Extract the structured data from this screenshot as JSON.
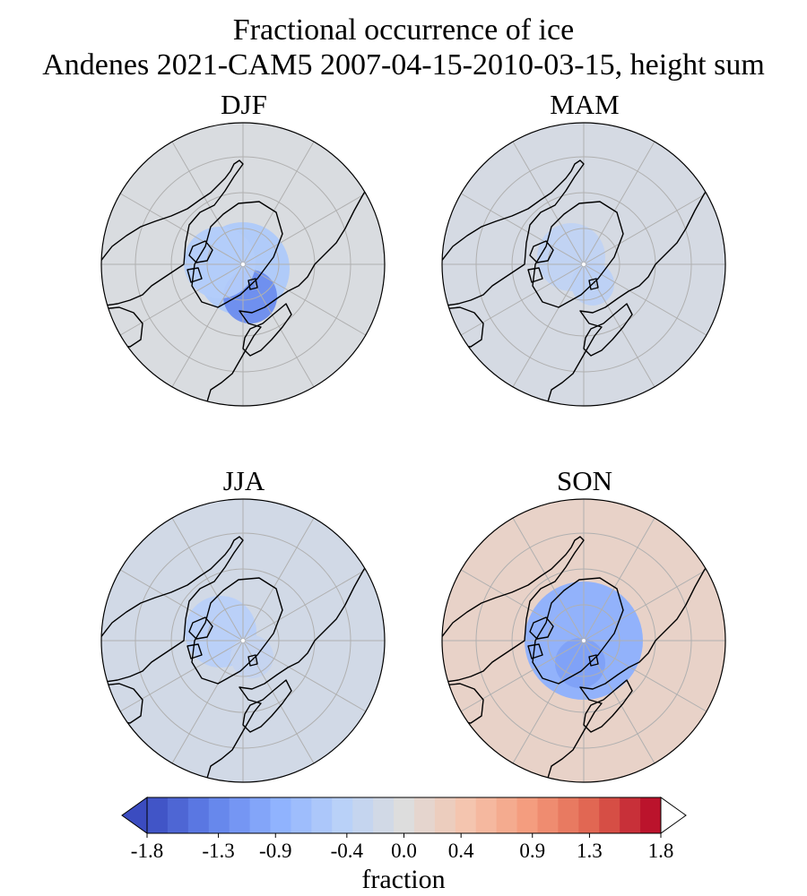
{
  "title_line1": "Fractional occurrence of ice",
  "title_line2": "Andenes 2021-CAM5 2007-04-15-2010-03-15, height sum",
  "colors": {
    "ocean_background": "#dcdde1",
    "coastline": "#000000",
    "gridline": "#b0b0b0",
    "colormap": "coolwarm"
  },
  "chart_data": {
    "type": "heatmap",
    "projection": "north polar stereographic",
    "variable": "fractional occurrence of ice",
    "panels": [
      {
        "title": "DJF",
        "summary": "negative anomaly over central Arctic and Greenland, strongest (about -1.3) over northern Scandinavia/Barents Sea; near zero elsewhere"
      },
      {
        "title": "MAM",
        "summary": "weak negative values (about -0.4) over Greenland and Arctic Ocean; near zero elsewhere"
      },
      {
        "title": "JJA",
        "summary": "weak negative values (about -0.5) over Canadian Arctic and Greenland; near zero elsewhere"
      },
      {
        "title": "SON",
        "summary": "broad negative anomaly (about -1.0) covering the whole Arctic Ocean; weak positive (about +0.2) at mid-latitudes"
      }
    ],
    "colorbar": {
      "label": "fraction",
      "range": [
        -1.8,
        1.8
      ],
      "ticks": [
        -1.8,
        -1.3,
        -0.9,
        -0.4,
        0.0,
        0.4,
        0.9,
        1.3,
        1.8
      ],
      "tick_labels": [
        "-1.8",
        "-1.3",
        "-0.9",
        "-0.4",
        "0.0",
        "0.4",
        "0.9",
        "1.3",
        "1.8"
      ],
      "extend": "both",
      "n_levels": 25
    }
  }
}
